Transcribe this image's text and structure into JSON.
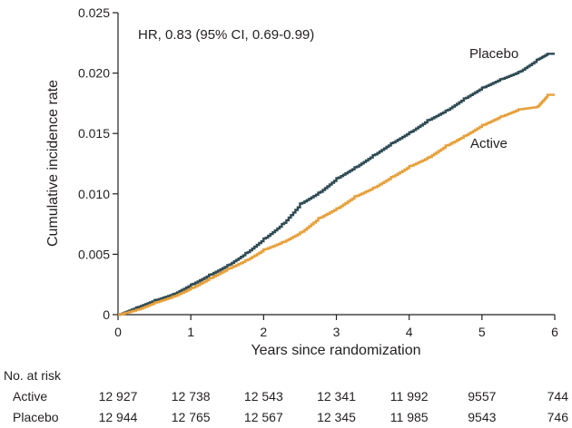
{
  "chart_data": {
    "type": "line",
    "chart_style": "step",
    "annotation": "HR, 0.83 (95% CI, 0.69-0.99)",
    "xlabel": "Years since randomization",
    "ylabel": "Cumulative incidence rate",
    "xlim": [
      0,
      6
    ],
    "ylim": [
      0,
      0.025
    ],
    "x_ticks": [
      {
        "value": 0,
        "label": "0"
      },
      {
        "value": 1,
        "label": "1"
      },
      {
        "value": 2,
        "label": "2"
      },
      {
        "value": 3,
        "label": "3"
      },
      {
        "value": 4,
        "label": "4"
      },
      {
        "value": 5,
        "label": "5"
      },
      {
        "value": 6,
        "label": "6"
      }
    ],
    "y_ticks": [
      {
        "value": 0,
        "label": "0"
      },
      {
        "value": 0.005,
        "label": "0.005"
      },
      {
        "value": 0.01,
        "label": "0.010"
      },
      {
        "value": 0.015,
        "label": "0.015"
      },
      {
        "value": 0.02,
        "label": "0.020"
      },
      {
        "value": 0.025,
        "label": "0.025"
      }
    ],
    "grid": false,
    "series": [
      {
        "name": "Placebo",
        "color": "#2e4a54",
        "points": [
          [
            0,
            0
          ],
          [
            0.25,
            0.0006
          ],
          [
            0.5,
            0.0012
          ],
          [
            0.75,
            0.0017
          ],
          [
            1,
            0.0025
          ],
          [
            1.25,
            0.0033
          ],
          [
            1.5,
            0.0041
          ],
          [
            1.75,
            0.0051
          ],
          [
            2,
            0.0063
          ],
          [
            2.25,
            0.0075
          ],
          [
            2.5,
            0.0092
          ],
          [
            2.75,
            0.0101
          ],
          [
            3,
            0.0113
          ],
          [
            3.25,
            0.0122
          ],
          [
            3.5,
            0.0132
          ],
          [
            3.75,
            0.0142
          ],
          [
            4,
            0.0151
          ],
          [
            4.25,
            0.0161
          ],
          [
            4.5,
            0.0169
          ],
          [
            4.75,
            0.0179
          ],
          [
            5,
            0.0188
          ],
          [
            5.25,
            0.0195
          ],
          [
            5.5,
            0.0201
          ],
          [
            5.75,
            0.0211
          ],
          [
            5.9,
            0.0216
          ],
          [
            6,
            0.0216
          ]
        ]
      },
      {
        "name": "Active",
        "color": "#e6a03a",
        "points": [
          [
            0,
            0
          ],
          [
            0.25,
            0.0004
          ],
          [
            0.5,
            0.001
          ],
          [
            0.75,
            0.0015
          ],
          [
            1,
            0.0022
          ],
          [
            1.25,
            0.003
          ],
          [
            1.5,
            0.0038
          ],
          [
            1.75,
            0.0045
          ],
          [
            2,
            0.0054
          ],
          [
            2.25,
            0.006
          ],
          [
            2.5,
            0.0068
          ],
          [
            2.75,
            0.008
          ],
          [
            3,
            0.0088
          ],
          [
            3.25,
            0.0098
          ],
          [
            3.5,
            0.0105
          ],
          [
            3.75,
            0.0114
          ],
          [
            4,
            0.0123
          ],
          [
            4.25,
            0.013
          ],
          [
            4.5,
            0.014
          ],
          [
            4.75,
            0.0148
          ],
          [
            5,
            0.0157
          ],
          [
            5.25,
            0.0164
          ],
          [
            5.5,
            0.017
          ],
          [
            5.75,
            0.0172
          ],
          [
            5.9,
            0.0182
          ],
          [
            6,
            0.0182
          ]
        ]
      }
    ],
    "number_at_risk": {
      "heading": "No. at risk",
      "rows": [
        {
          "label": "Active",
          "values": [
            "12 927",
            "12 738",
            "12 543",
            "12 341",
            "11 992",
            "9557",
            "744"
          ]
        },
        {
          "label": "Placebo",
          "values": [
            "12 944",
            "12 765",
            "12 567",
            "12 345",
            "11 985",
            "9543",
            "746"
          ]
        }
      ]
    }
  }
}
